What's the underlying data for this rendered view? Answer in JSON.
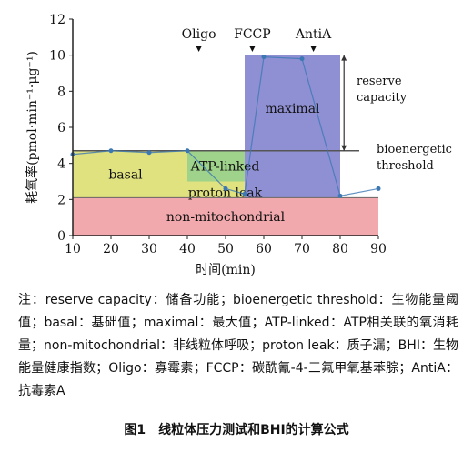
{
  "chart_data": {
    "type": "area",
    "ylabel": "耗氧率(pmol·min⁻¹·μg⁻¹)",
    "xlabel": "时间(min)",
    "xlim": [
      10,
      90
    ],
    "ylim": [
      0,
      12
    ],
    "x_ticks": [
      10,
      20,
      30,
      40,
      50,
      60,
      70,
      80,
      90
    ],
    "y_ticks": [
      0,
      2,
      4,
      6,
      8,
      10,
      12
    ],
    "regions": [
      {
        "label": "non-mitochondrial",
        "x0": 10,
        "x1": 90,
        "y0": 0,
        "y1": 2.1,
        "color": "#f2a9ad"
      },
      {
        "label": "basal",
        "x0": 10,
        "x1": 40,
        "y0": 2.1,
        "y1": 4.7,
        "color": "#dfe27e"
      },
      {
        "label": "ATP-linked",
        "x0": 40,
        "x1": 55,
        "y0": 3.0,
        "y1": 4.7,
        "color": "#9fd28a"
      },
      {
        "label": "proton leak",
        "x0": 40,
        "x1": 55,
        "y0": 2.1,
        "y1": 3.0,
        "color": "#dfe27e"
      },
      {
        "label": "maximal",
        "x0": 55,
        "x1": 80,
        "y0": 2.1,
        "y1": 10.0,
        "color": "#8f8fd3"
      }
    ],
    "series": [
      {
        "x": [
          10,
          20,
          30,
          40,
          50,
          55,
          60,
          70,
          80,
          90
        ],
        "values": [
          4.5,
          4.7,
          4.6,
          4.7,
          2.6,
          2.3,
          9.9,
          9.8,
          2.2,
          2.6
        ]
      }
    ],
    "injections": [
      {
        "label": "Oligo",
        "x": 43
      },
      {
        "label": "FCCP",
        "x": 57
      },
      {
        "label": "AntiA",
        "x": 73
      }
    ],
    "annotations": [
      {
        "text": "reserve",
        "line2": "capacity"
      },
      {
        "text": "bioenergetic",
        "line2": "threshold"
      }
    ],
    "colors": {
      "axis": "#222222",
      "line": "#3c78b4",
      "marker": "#3c78b4",
      "dark_line": "#333333"
    }
  },
  "note": {
    "text": "注：reserve capacity：储备功能；bioenergetic threshold：生物能量阈值；basal：基础值；maximal：最大值；ATP-linked：ATP相关联的氧消耗量；non-mitochondrial：非线粒体呼吸；proton leak：质子漏；BHI：生物能量健康指数；Oligo：寡霉素；FCCP：碳酰氰-4-三氟甲氧基苯腙；AntiA：抗毒素A"
  },
  "caption": "图1　线粒体压力测试和BHI的计算公式"
}
